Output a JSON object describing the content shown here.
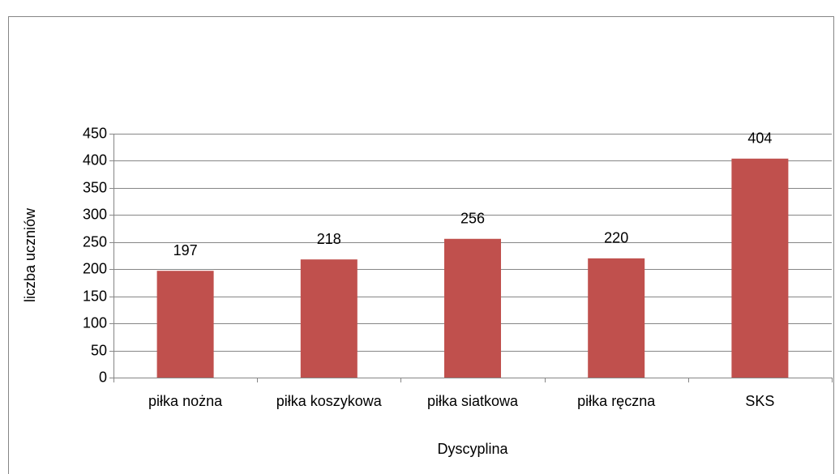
{
  "chart_data": {
    "type": "bar",
    "categories": [
      "piłka nożna",
      "piłka koszykowa",
      "piłka siatkowa",
      "piłka ręczna",
      "SKS"
    ],
    "values": [
      197,
      218,
      256,
      220,
      404
    ],
    "color": "#c0504d",
    "x_label": "Dyscyplina",
    "y_label": "liczba uczniów",
    "ylim": [
      0,
      450
    ],
    "yticks": [
      0,
      50,
      100,
      150,
      200,
      250,
      300,
      350,
      400,
      450
    ],
    "grid": true,
    "data_labels": true
  }
}
